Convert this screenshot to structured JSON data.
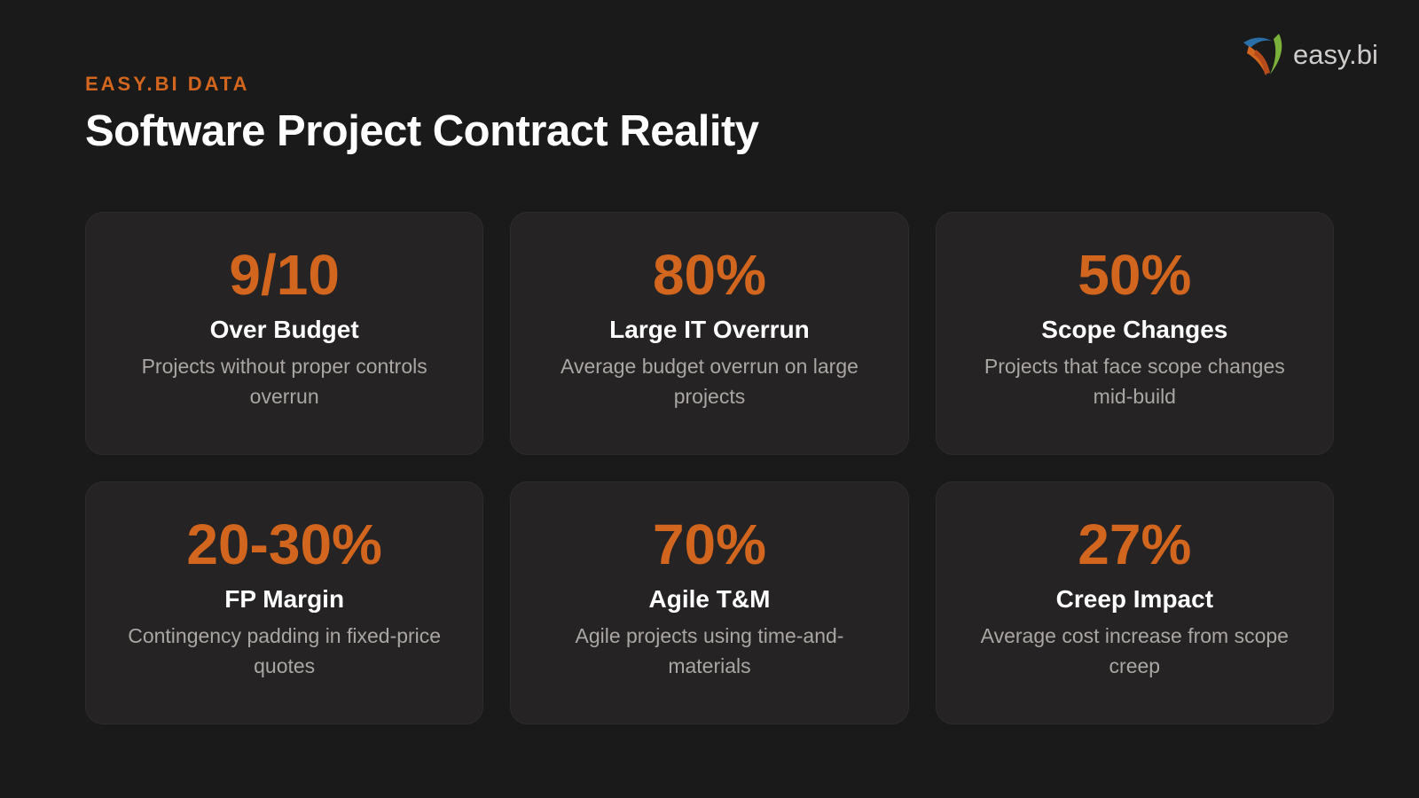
{
  "header": {
    "eyebrow": "EASY.BI DATA",
    "title": "Software Project Contract Reality",
    "logo": "easy.bi"
  },
  "cards": [
    {
      "stat": "9/10",
      "label": "Over Budget",
      "description": "Projects without proper controls overrun"
    },
    {
      "stat": "80%",
      "label": "Large IT Overrun",
      "description": "Average budget overrun on large projects"
    },
    {
      "stat": "50%",
      "label": "Scope Changes",
      "description": "Projects that face scope changes mid-build"
    },
    {
      "stat": "20-30%",
      "label": "FP Margin",
      "description": "Contingency padding in fixed-price quotes"
    },
    {
      "stat": "70%",
      "label": "Agile T&M",
      "description": "Agile projects using time-and-materials"
    },
    {
      "stat": "27%",
      "label": "Creep Impact",
      "description": "Average cost increase from scope creep"
    }
  ]
}
